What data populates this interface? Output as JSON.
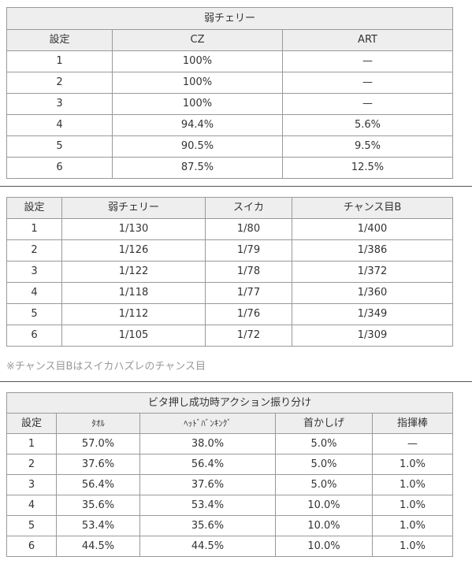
{
  "table1": {
    "title": "弱チェリー",
    "headers": [
      "設定",
      "CZ",
      "ART"
    ],
    "rows": [
      [
        "1",
        "100%",
        "—"
      ],
      [
        "2",
        "100%",
        "—"
      ],
      [
        "3",
        "100%",
        "—"
      ],
      [
        "4",
        "94.4%",
        "5.6%"
      ],
      [
        "5",
        "90.5%",
        "9.5%"
      ],
      [
        "6",
        "87.5%",
        "12.5%"
      ]
    ]
  },
  "table2": {
    "headers": [
      "設定",
      "弱チェリー",
      "スイカ",
      "チャンス目B"
    ],
    "rows": [
      [
        "1",
        "1/130",
        "1/80",
        "1/400"
      ],
      [
        "2",
        "1/126",
        "1/79",
        "1/386"
      ],
      [
        "3",
        "1/122",
        "1/78",
        "1/372"
      ],
      [
        "4",
        "1/118",
        "1/77",
        "1/360"
      ],
      [
        "5",
        "1/112",
        "1/76",
        "1/349"
      ],
      [
        "6",
        "1/105",
        "1/72",
        "1/309"
      ]
    ],
    "note": "※チャンス目Bはスイカハズレのチャンス目"
  },
  "table3": {
    "title": "ビタ押し成功時アクション振り分け",
    "headers": [
      "設定",
      "ﾀｵﾙ",
      "ﾍｯﾄﾞﾊﾞﾝｷﾝｸﾞ",
      "首かしげ",
      "指揮棒"
    ],
    "rows": [
      [
        "1",
        "57.0%",
        "38.0%",
        "5.0%",
        "—"
      ],
      [
        "2",
        "37.6%",
        "56.4%",
        "5.0%",
        "1.0%"
      ],
      [
        "3",
        "56.4%",
        "37.6%",
        "5.0%",
        "1.0%"
      ],
      [
        "4",
        "35.6%",
        "53.4%",
        "10.0%",
        "1.0%"
      ],
      [
        "5",
        "53.4%",
        "35.6%",
        "10.0%",
        "1.0%"
      ],
      [
        "6",
        "44.5%",
        "44.5%",
        "10.0%",
        "1.0%"
      ]
    ]
  }
}
